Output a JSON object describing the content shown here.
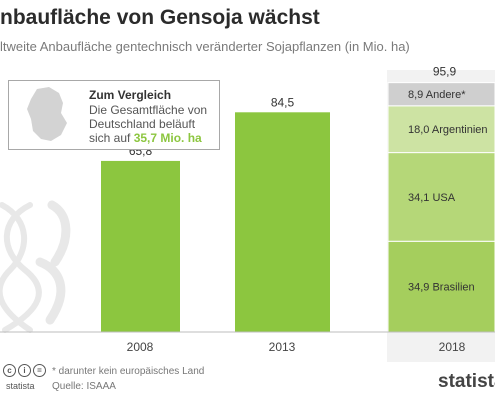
{
  "header": {
    "title": "nbaufläche von Gensoja wächst",
    "subtitle": "ltweite Anbaufläche gentechnisch veränderter Sojapflanzen (in Mio. ha)"
  },
  "infobox": {
    "heading": "Zum Vergleich",
    "line1": "Die Gesamtfläche von",
    "line2": "Deutschland beläuft",
    "line3_prefix": "sich auf ",
    "value": "35,7 Mio. ha"
  },
  "footer": {
    "cc_icons": [
      "cc-icon",
      "by-icon",
      "nd-icon"
    ],
    "brand": "statista",
    "footnote": "* darunter kein europäisches Land",
    "source": "Quelle: ISAAA",
    "logo": "statista"
  },
  "colors": {
    "bar": "#8cc63f",
    "stack_brasilien": "#a5ce5d",
    "stack_usa": "#b5d778",
    "stack_argentinien": "#cde3a3",
    "stack_andere": "#cfcfcf",
    "background_panel": "#f2f2f2",
    "illustration": "#e8e8e8"
  },
  "chart_data": {
    "type": "bar",
    "title": "nbaufläche von Gensoja wächst",
    "categories": [
      "2008",
      "2013",
      "2018"
    ],
    "simple_bars": [
      {
        "category": "2008",
        "value": 65.8,
        "label": "65,8"
      },
      {
        "category": "2013",
        "value": 84.5,
        "label": "84,5"
      }
    ],
    "stacked_bar": {
      "category": "2018",
      "total": 95.9,
      "total_label": "95,9",
      "segments": [
        {
          "name": "Brasilien",
          "value": 34.9,
          "label": "34,9"
        },
        {
          "name": "USA",
          "value": 34.1,
          "label": "34,1"
        },
        {
          "name": "Argentinien",
          "value": 18.0,
          "label": "18,0"
        },
        {
          "name": "Andere*",
          "value": 8.9,
          "label": "8,9"
        }
      ]
    },
    "ylim": [
      0,
      100
    ],
    "grid": false,
    "legend": "none"
  }
}
